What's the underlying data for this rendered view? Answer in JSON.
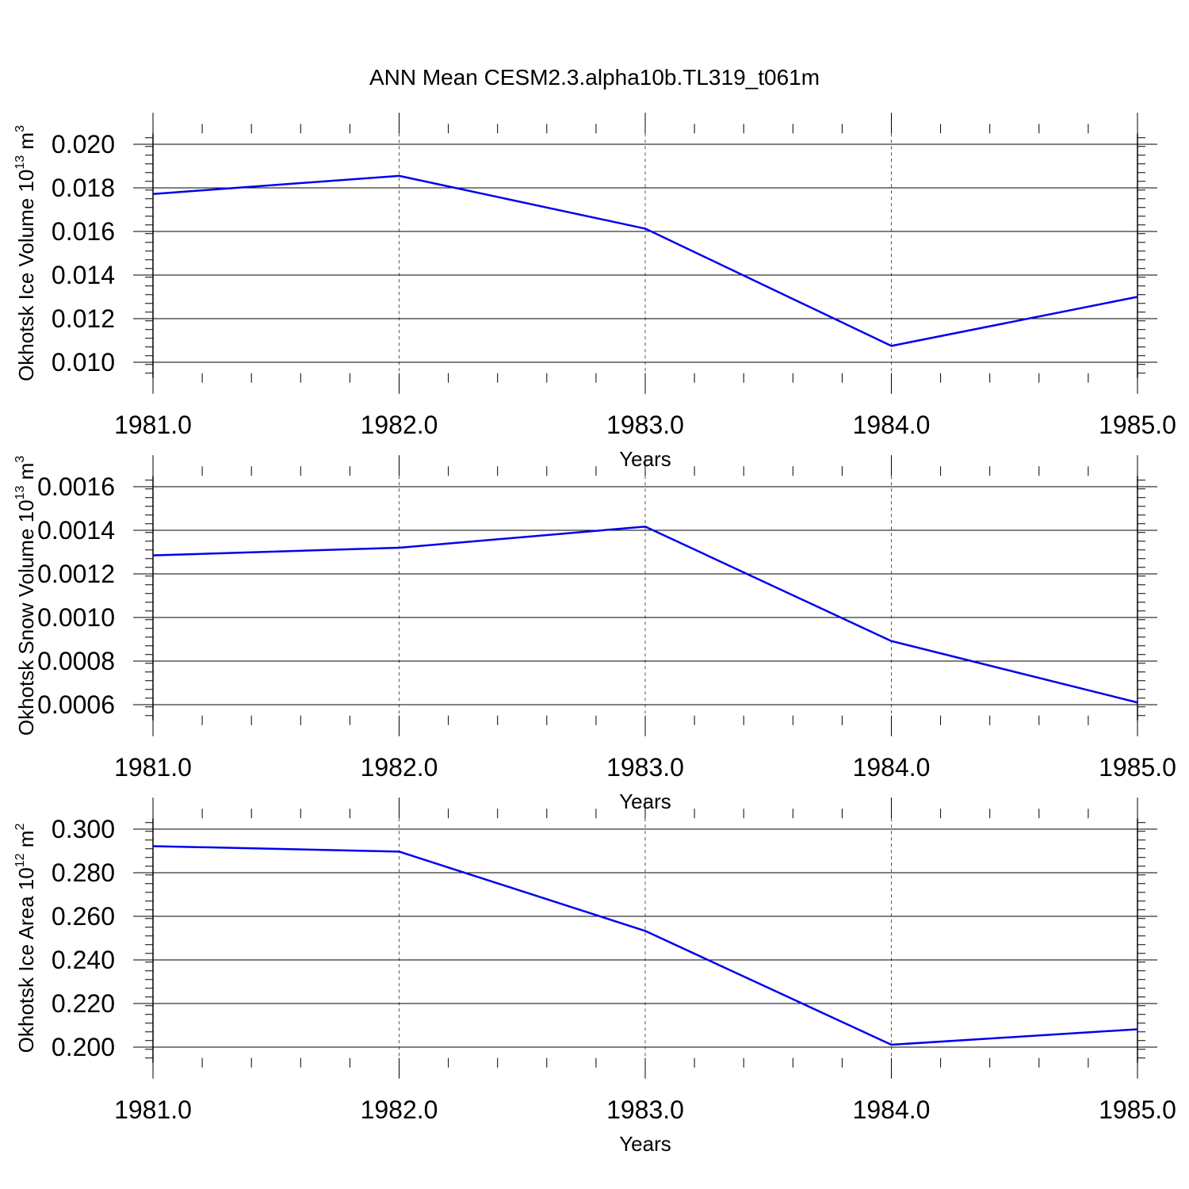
{
  "title": "ANN Mean CESM2.3.alpha10b.TL319_t061m",
  "colors": {
    "series": "#0000ee",
    "axes": "#000000",
    "grid": "#555555"
  },
  "chart_data": [
    {
      "type": "line",
      "xlabel": "Years",
      "ylabel": {
        "text": "Okhotsk Ice Volume 10",
        "exp": "13",
        "unit": " m",
        "unit_exp": "3"
      },
      "xlim": [
        1981,
        1985
      ],
      "ylim": [
        0.0095,
        0.0205
      ],
      "x_ticks": [
        1981,
        1982,
        1983,
        1984,
        1985
      ],
      "x_tick_labels": [
        "1981.0",
        "1982.0",
        "1983.0",
        "1984.0",
        "1985.0"
      ],
      "y_ticks": [
        0.01,
        0.012,
        0.014,
        0.016,
        0.018,
        0.02
      ],
      "y_tick_labels": [
        "0.010",
        "0.012",
        "0.014",
        "0.016",
        "0.018",
        "0.020"
      ],
      "y_minor_step": 0.0004,
      "x": [
        1981,
        1982,
        1983,
        1984,
        1985
      ],
      "values": [
        0.01772,
        0.01855,
        0.01613,
        0.01075,
        0.013
      ],
      "grid": "vertical dashed at major x ticks"
    },
    {
      "type": "line",
      "xlabel": "Years",
      "ylabel": {
        "text": "Okhotsk Snow Volume 10",
        "exp": "13",
        "unit": " m",
        "unit_exp": "3"
      },
      "xlim": [
        1981,
        1985
      ],
      "ylim": [
        0.00055,
        0.00165
      ],
      "x_ticks": [
        1981,
        1982,
        1983,
        1984,
        1985
      ],
      "x_tick_labels": [
        "1981.0",
        "1982.0",
        "1983.0",
        "1984.0",
        "1985.0"
      ],
      "y_ticks": [
        0.0006,
        0.0008,
        0.001,
        0.0012,
        0.0014,
        0.0016
      ],
      "y_tick_labels": [
        "0.0006",
        "0.0008",
        "0.0010",
        "0.0012",
        "0.0014",
        "0.0016"
      ],
      "y_minor_step": 4e-05,
      "x": [
        1981,
        1982,
        1983,
        1984,
        1985
      ],
      "values": [
        0.001285,
        0.00132,
        0.001417,
        0.000892,
        0.00061
      ],
      "grid": "vertical dashed at major x ticks"
    },
    {
      "type": "line",
      "xlabel": "Years",
      "ylabel": {
        "text": "Okhotsk Ice Area 10",
        "exp": "12",
        "unit": " m",
        "unit_exp": "2"
      },
      "xlim": [
        1981,
        1985
      ],
      "ylim": [
        0.195,
        0.305
      ],
      "x_ticks": [
        1981,
        1982,
        1983,
        1984,
        1985
      ],
      "x_tick_labels": [
        "1981.0",
        "1982.0",
        "1983.0",
        "1984.0",
        "1985.0"
      ],
      "y_ticks": [
        0.2,
        0.22,
        0.24,
        0.26,
        0.28,
        0.3
      ],
      "y_tick_labels": [
        "0.200",
        "0.220",
        "0.240",
        "0.260",
        "0.280",
        "0.300"
      ],
      "y_minor_step": 0.004,
      "x": [
        1981,
        1982,
        1983,
        1984,
        1985
      ],
      "values": [
        0.2922,
        0.2897,
        0.2533,
        0.2011,
        0.2082
      ],
      "grid": "vertical dashed at major x ticks"
    }
  ]
}
